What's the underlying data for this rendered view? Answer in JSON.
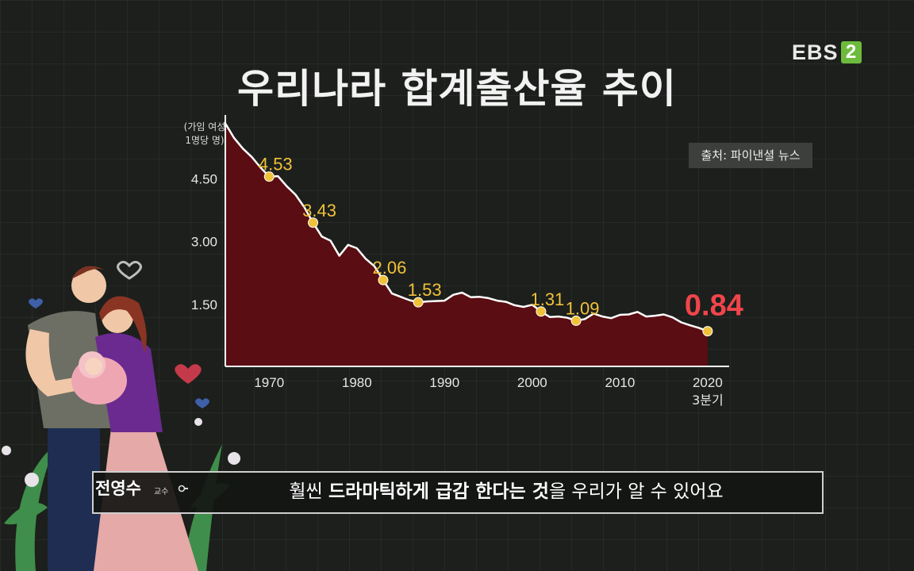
{
  "header": {
    "title": "우리나라 합계출산율 추이",
    "channel_logo": "EBS",
    "channel_number": "2",
    "source_label": "출처: 파이낸셜 뉴스"
  },
  "subtitle_bar": {
    "speaker_name": "전영수",
    "speaker_role": "교수",
    "pre": "훨씬 ",
    "emphasis": "드라마틱하게 급감 한다는 것",
    "post": "을 우리가 알 수 있어요"
  },
  "chart_data": {
    "type": "area",
    "title": "우리나라 합계출산율 추이",
    "ylabel": [
      "(가임 여성",
      "1명당 명)"
    ],
    "xlim": [
      1965,
      2022
    ],
    "ylim": [
      0,
      6
    ],
    "y_ticks": [
      {
        "value": 1.5,
        "label": "1.50"
      },
      {
        "value": 3.0,
        "label": "3.00"
      },
      {
        "value": 4.5,
        "label": "4.50"
      }
    ],
    "x_ticks": [
      {
        "value": 1970,
        "label": "1970"
      },
      {
        "value": 1980,
        "label": "1980"
      },
      {
        "value": 1990,
        "label": "1990"
      },
      {
        "value": 2000,
        "label": "2000"
      },
      {
        "value": 2010,
        "label": "2010"
      },
      {
        "value": 2020,
        "label": "2020",
        "sublabel": "3분기"
      }
    ],
    "series": [
      {
        "x": [
          1965,
          1966,
          1967,
          1968,
          1969,
          1970,
          1971,
          1972,
          1973,
          1974,
          1975,
          1976,
          1977,
          1978,
          1979,
          1980,
          1981,
          1982,
          1983,
          1984,
          1985,
          1986,
          1987,
          1988,
          1989,
          1990,
          1991,
          1992,
          1993,
          1994,
          1995,
          1996,
          1997,
          1998,
          1999,
          2000,
          2001,
          2002,
          2003,
          2004,
          2005,
          2006,
          2007,
          2008,
          2009,
          2010,
          2011,
          2012,
          2013,
          2014,
          2015,
          2016,
          2017,
          2018,
          2019,
          2020
        ],
        "y": [
          5.8,
          5.45,
          5.2,
          5.0,
          4.75,
          4.53,
          4.54,
          4.3,
          4.1,
          3.8,
          3.43,
          3.1,
          3.0,
          2.64,
          2.9,
          2.82,
          2.57,
          2.39,
          2.06,
          1.74,
          1.66,
          1.58,
          1.53,
          1.55,
          1.56,
          1.57,
          1.71,
          1.76,
          1.65,
          1.66,
          1.63,
          1.57,
          1.54,
          1.46,
          1.42,
          1.47,
          1.31,
          1.18,
          1.19,
          1.16,
          1.09,
          1.13,
          1.26,
          1.19,
          1.15,
          1.23,
          1.24,
          1.3,
          1.19,
          1.21,
          1.24,
          1.17,
          1.05,
          0.98,
          0.92,
          0.84
        ]
      }
    ],
    "labeled_points": [
      {
        "x": 1970,
        "y": 4.53,
        "label": "4.53"
      },
      {
        "x": 1975,
        "y": 3.43,
        "label": "3.43"
      },
      {
        "x": 1983,
        "y": 2.06,
        "label": "2.06"
      },
      {
        "x": 1987,
        "y": 1.53,
        "label": "1.53"
      },
      {
        "x": 2001,
        "y": 1.31,
        "label": "1.31"
      },
      {
        "x": 2005,
        "y": 1.09,
        "label": "1.09"
      },
      {
        "x": 2020,
        "y": 0.84,
        "label": "0.84",
        "highlight": true
      }
    ],
    "colors": {
      "area_fill": "#5a0d12",
      "line": "#ffffff",
      "marker": "#f1c13a",
      "label": "#f1c13a",
      "highlight_label": "#f0454b"
    }
  }
}
